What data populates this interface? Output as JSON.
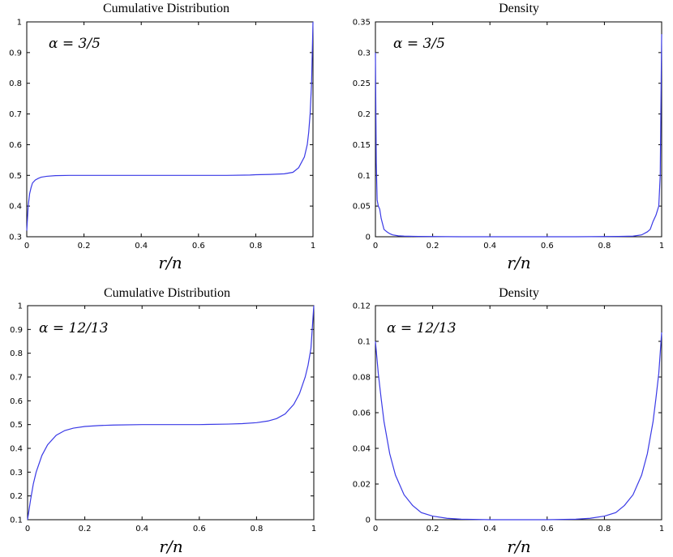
{
  "chart_data": [
    {
      "type": "line",
      "title": "Cumulative Distribution",
      "xlabel": "r/n",
      "ylabel": "",
      "annotation": "α = 3/5",
      "xlim": [
        0,
        1
      ],
      "ylim": [
        0.3,
        1
      ],
      "xticks": [
        "0",
        "0.2",
        "0.4",
        "0.6",
        "0.8",
        "1"
      ],
      "yticks": [
        "0.3",
        "0.4",
        "0.5",
        "0.6",
        "0.7",
        "0.8",
        "0.9",
        "1"
      ],
      "grid": false,
      "series": [
        {
          "x": [
            0,
            0.005,
            0.01,
            0.015,
            0.02,
            0.03,
            0.04,
            0.05,
            0.07,
            0.1,
            0.15,
            0.3,
            0.5,
            0.7,
            0.78,
            0.8,
            0.85,
            0.9,
            0.93,
            0.95,
            0.97,
            0.98,
            0.985,
            0.99,
            0.995,
            1.0
          ],
          "y": [
            0.32,
            0.4,
            0.44,
            0.46,
            0.475,
            0.485,
            0.49,
            0.494,
            0.497,
            0.499,
            0.5,
            0.5,
            0.5,
            0.5,
            0.501,
            0.502,
            0.503,
            0.505,
            0.51,
            0.525,
            0.56,
            0.6,
            0.64,
            0.7,
            0.8,
            1.0
          ]
        }
      ]
    },
    {
      "type": "line",
      "title": "Density",
      "xlabel": "r/n",
      "ylabel": "",
      "annotation": "α = 3/5",
      "xlim": [
        0,
        1
      ],
      "ylim": [
        0,
        0.35
      ],
      "xticks": [
        "0",
        "0.2",
        "0.4",
        "0.6",
        "0.8",
        "1"
      ],
      "yticks": [
        "0",
        "0.05",
        "0.1",
        "0.15",
        "0.2",
        "0.25",
        "0.3",
        "0.35"
      ],
      "grid": false,
      "series": [
        {
          "x": [
            0,
            0.003,
            0.006,
            0.01,
            0.015,
            0.02,
            0.03,
            0.04,
            0.05,
            0.06,
            0.08,
            0.1,
            0.15,
            0.3,
            0.5,
            0.7,
            0.85,
            0.9,
            0.93,
            0.95,
            0.96,
            0.97,
            0.98,
            0.99,
            0.995,
            1.0
          ],
          "y": [
            0.3,
            0.12,
            0.06,
            0.05,
            0.045,
            0.03,
            0.012,
            0.008,
            0.005,
            0.003,
            0.0015,
            0.001,
            0.0005,
            0.0,
            0.0,
            0.0,
            0.0005,
            0.001,
            0.003,
            0.008,
            0.012,
            0.025,
            0.035,
            0.05,
            0.1,
            0.33
          ]
        }
      ]
    },
    {
      "type": "line",
      "title": "Cumulative Distribution",
      "xlabel": "r/n",
      "ylabel": "",
      "annotation": "α = 12/13",
      "xlim": [
        0,
        1
      ],
      "ylim": [
        0.1,
        1
      ],
      "xticks": [
        "0",
        "0.2",
        "0.4",
        "0.6",
        "0.8",
        "1"
      ],
      "yticks": [
        "0.1",
        "0.2",
        "0.3",
        "0.4",
        "0.5",
        "0.6",
        "0.7",
        "0.8",
        "0.9",
        "1"
      ],
      "grid": false,
      "series": [
        {
          "x": [
            0,
            0.01,
            0.02,
            0.03,
            0.05,
            0.07,
            0.1,
            0.13,
            0.16,
            0.2,
            0.25,
            0.3,
            0.4,
            0.5,
            0.6,
            0.7,
            0.75,
            0.8,
            0.84,
            0.87,
            0.9,
            0.93,
            0.95,
            0.97,
            0.98,
            0.99,
            1.0
          ],
          "y": [
            0.1,
            0.18,
            0.25,
            0.3,
            0.37,
            0.415,
            0.455,
            0.475,
            0.485,
            0.492,
            0.496,
            0.498,
            0.5,
            0.5,
            0.5,
            0.502,
            0.504,
            0.508,
            0.515,
            0.525,
            0.545,
            0.585,
            0.63,
            0.7,
            0.75,
            0.82,
            1.0
          ]
        }
      ]
    },
    {
      "type": "line",
      "title": "Density",
      "xlabel": "r/n",
      "ylabel": "",
      "annotation": "α = 12/13",
      "xlim": [
        0,
        1
      ],
      "ylim": [
        0,
        0.12
      ],
      "xticks": [
        "0",
        "0.2",
        "0.4",
        "0.6",
        "0.8",
        "1"
      ],
      "yticks": [
        "0",
        "0.02",
        "0.04",
        "0.06",
        "0.08",
        "0.1",
        "0.12"
      ],
      "grid": false,
      "series": [
        {
          "x": [
            0,
            0.01,
            0.02,
            0.03,
            0.05,
            0.07,
            0.1,
            0.13,
            0.16,
            0.2,
            0.25,
            0.3,
            0.4,
            0.5,
            0.6,
            0.7,
            0.75,
            0.8,
            0.84,
            0.87,
            0.9,
            0.93,
            0.95,
            0.97,
            0.98,
            0.99,
            1.0
          ],
          "y": [
            0.1,
            0.082,
            0.068,
            0.055,
            0.037,
            0.025,
            0.014,
            0.008,
            0.004,
            0.002,
            0.0008,
            0.0003,
            0.0,
            0.0,
            0.0,
            0.0003,
            0.0008,
            0.002,
            0.004,
            0.008,
            0.014,
            0.025,
            0.037,
            0.055,
            0.068,
            0.082,
            0.105
          ]
        }
      ]
    }
  ]
}
